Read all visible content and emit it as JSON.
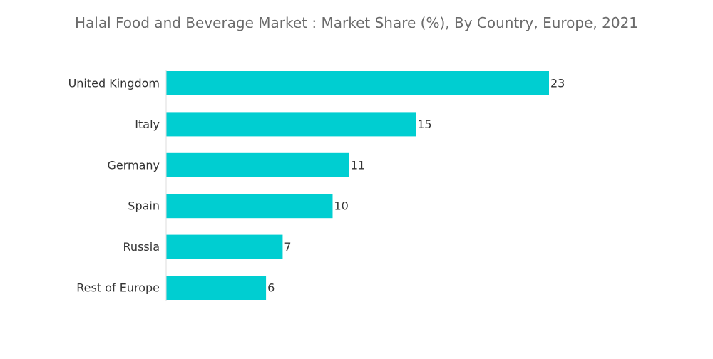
{
  "chart_data": {
    "type": "bar",
    "orientation": "horizontal",
    "title": "Halal Food and Beverage Market : Market Share (%), By Country, Europe, 2021",
    "categories": [
      "United Kingdom",
      "Italy",
      "Germany",
      "Spain",
      "Russia",
      "Rest of Europe"
    ],
    "values": [
      23,
      15,
      11,
      10,
      7,
      6
    ],
    "xlabel": "",
    "ylabel": "",
    "xlim": [
      0,
      23
    ],
    "grid": false,
    "legend": "none",
    "bar_color": "#00CED1",
    "data_labels": [
      "23",
      "15",
      "11",
      "10",
      "7",
      "6"
    ]
  }
}
